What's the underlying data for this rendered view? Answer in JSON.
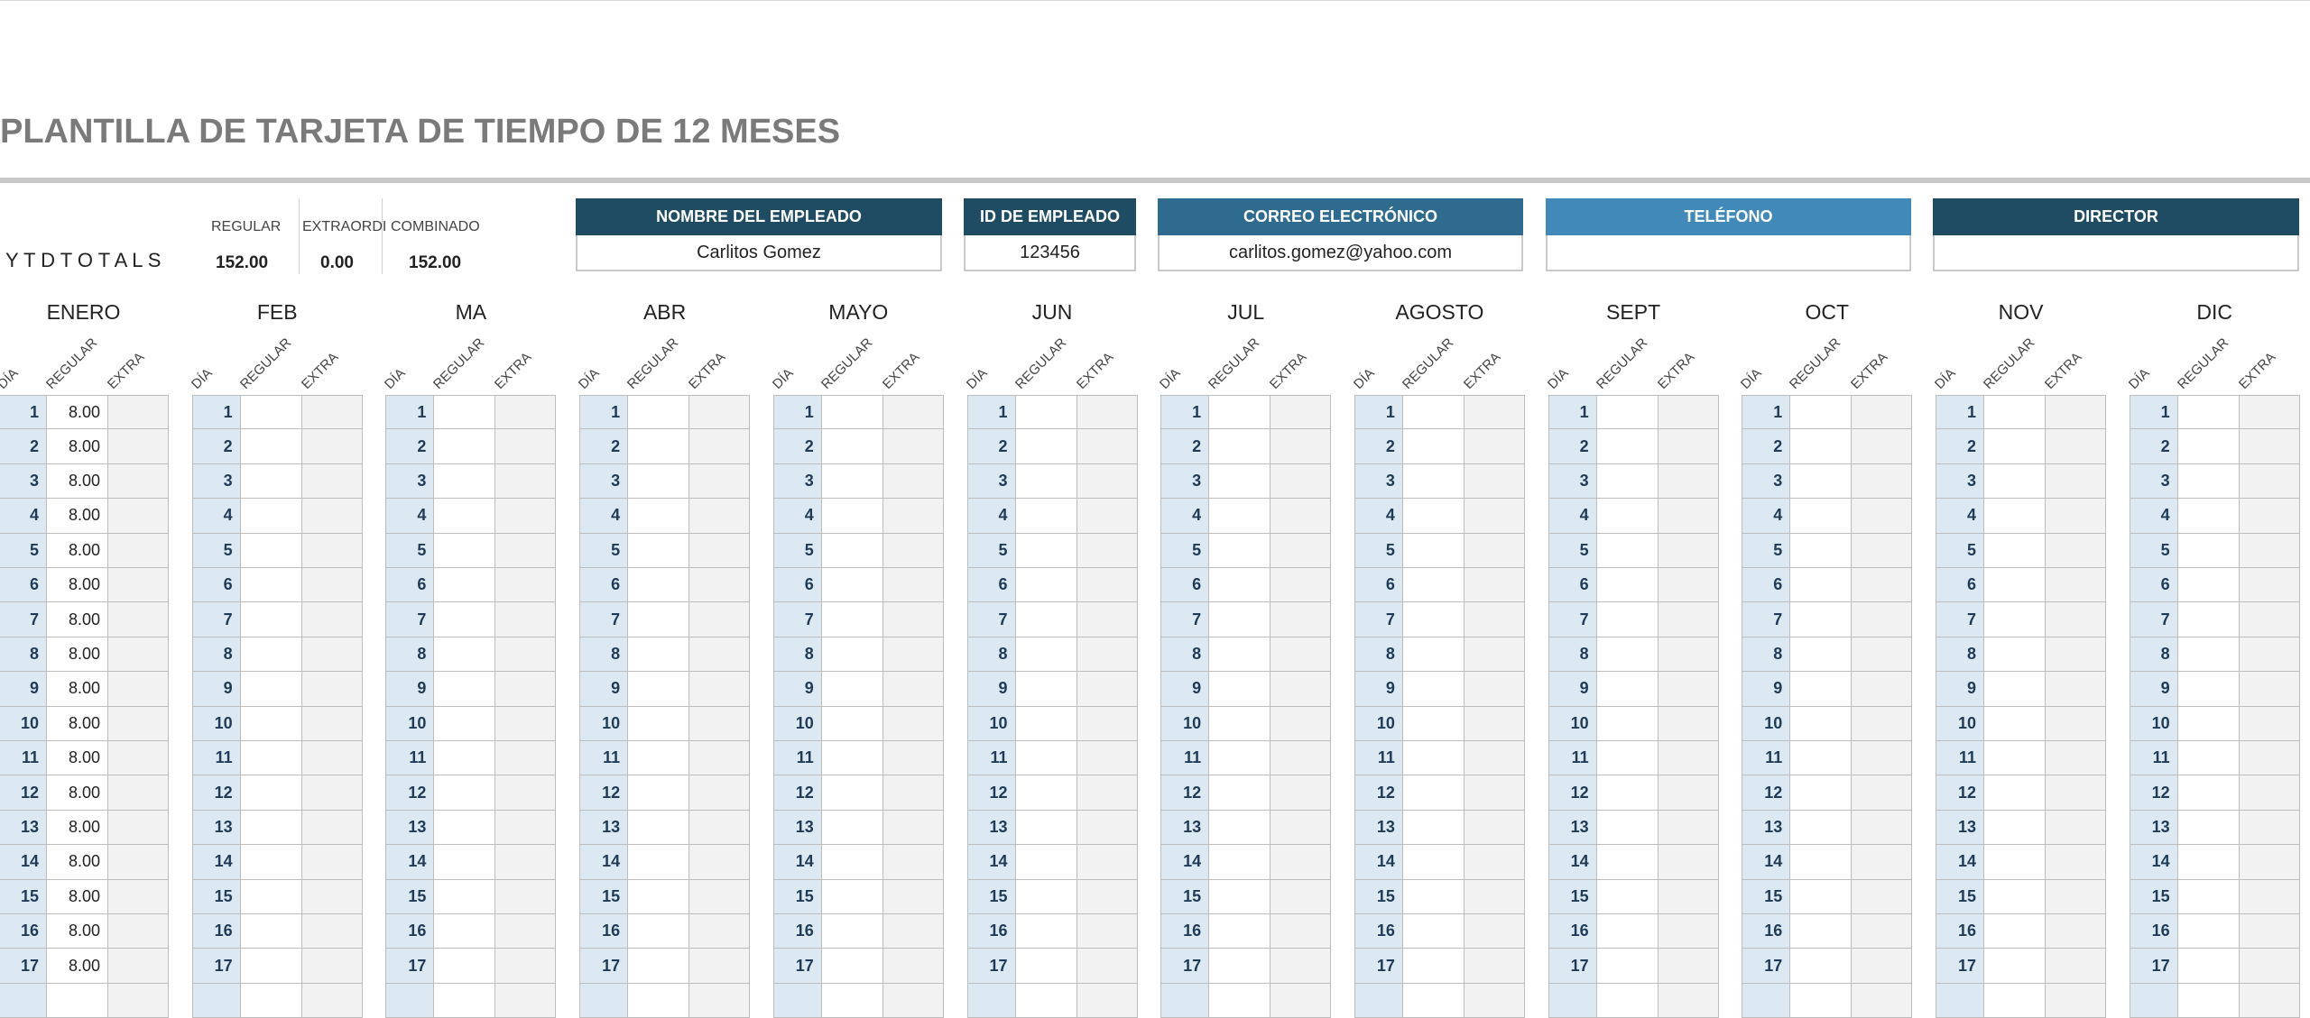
{
  "title": "PLANTILLA DE TARJETA DE TIEMPO DE 12 MESES",
  "ytd": {
    "label": "Y T D T O T A L S",
    "headers": [
      "REGULAR",
      "EXTRAORDI",
      "COMBINADO"
    ],
    "values": [
      "152.00",
      "0.00",
      "152.00"
    ]
  },
  "employee": [
    {
      "label": "NOMBRE DEL EMPLEADO",
      "value": "Carlitos Gomez"
    },
    {
      "label": "ID DE EMPLEADO",
      "value": "123456"
    },
    {
      "label": "CORREO ELECTRÓNICO",
      "value": "carlitos.gomez@yahoo.com"
    },
    {
      "label": "TELÉFONO"
    },
    {
      "label": "DIRECTOR"
    }
  ],
  "column_headers": [
    "DÍA",
    "REGULAR",
    "EXTRA"
  ],
  "days": [
    1,
    2,
    3,
    4,
    5,
    6,
    7,
    8,
    9,
    10,
    11,
    12,
    13,
    14,
    15,
    16,
    17
  ],
  "months": [
    {
      "name": "ENERO",
      "regular": [
        "8.00",
        "8.00",
        "8.00",
        "8.00",
        "8.00",
        "8.00",
        "8.00",
        "8.00",
        "8.00",
        "8.00",
        "8.00",
        "8.00",
        "8.00",
        "8.00",
        "8.00",
        "8.00",
        "8.00"
      ]
    },
    {
      "name": "FEB"
    },
    {
      "name": "MA"
    },
    {
      "name": "ABR"
    },
    {
      "name": "MAYO"
    },
    {
      "name": "JUN"
    },
    {
      "name": "JUL"
    },
    {
      "name": "AGOSTO"
    },
    {
      "name": "SEPT"
    },
    {
      "name": "OCT"
    },
    {
      "name": "NOV"
    },
    {
      "name": "DIC"
    }
  ]
}
